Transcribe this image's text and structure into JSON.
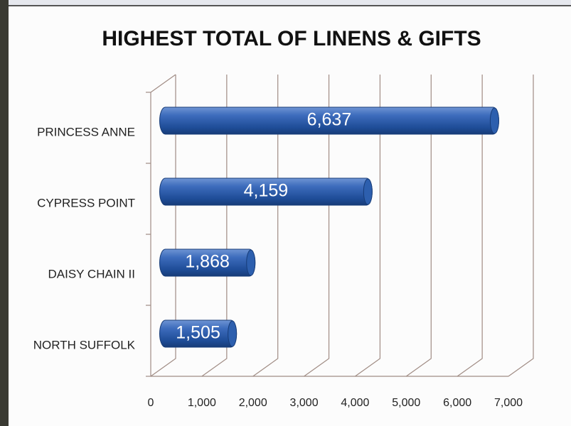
{
  "chart_data": {
    "type": "bar",
    "orientation": "horizontal",
    "title": "HIGHEST TOTAL OF LINENS & GIFTS",
    "categories": [
      "PRINCESS ANNE",
      "CYPRESS POINT",
      "DAISY CHAIN II",
      "NORTH SUFFOLK"
    ],
    "values": [
      6637,
      4159,
      1868,
      1505
    ],
    "value_labels": [
      "6,637",
      "4,159",
      "1,868",
      "1,505"
    ],
    "color": "#2a5aa6",
    "xlim": [
      0,
      7000
    ],
    "xticks": [
      0,
      {
        "value": 1000,
        "label": "1,000"
      },
      {
        "value": 2000,
        "label": "2,000"
      },
      {
        "value": 3000,
        "label": "3,000"
      },
      {
        "value": 4000,
        "label": "4,000"
      },
      {
        "value": 5000,
        "label": "5,000"
      },
      {
        "value": 6000,
        "label": "6,000"
      },
      {
        "value": 7000,
        "label": "7,000"
      }
    ],
    "grid": true
  }
}
